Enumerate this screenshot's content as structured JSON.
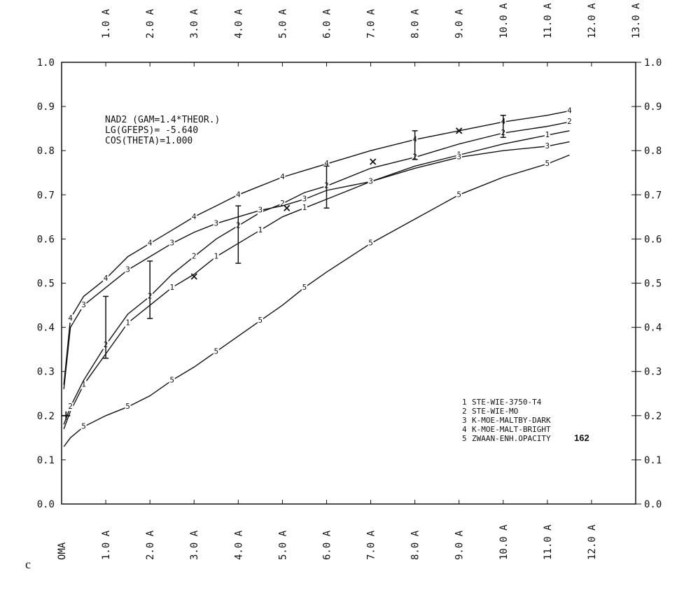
{
  "chart_data": {
    "type": "line",
    "annotations": [
      "NAD2 (GAM=1.4*THEOR.)",
      "LG(GFEPS)= -5.640",
      "COS(THETA)=1.000"
    ],
    "page_label": "c",
    "figure_number": "162",
    "xlim": [
      0,
      13
    ],
    "ylim": [
      0,
      1
    ],
    "xticks": [
      {
        "value": 0,
        "label": "OMA"
      },
      {
        "value": 1,
        "label": "1.0 A"
      },
      {
        "value": 2,
        "label": "2.0 A"
      },
      {
        "value": 3,
        "label": "3.0 A"
      },
      {
        "value": 4,
        "label": "4.0 A"
      },
      {
        "value": 5,
        "label": "5.0 A"
      },
      {
        "value": 6,
        "label": "6.0 A"
      },
      {
        "value": 7,
        "label": "7.0 A"
      },
      {
        "value": 8,
        "label": "8.0 A"
      },
      {
        "value": 9,
        "label": "9.0 A"
      },
      {
        "value": 10,
        "label": "10.0 A"
      },
      {
        "value": 11,
        "label": "11.0 A"
      },
      {
        "value": 12,
        "label": "12.0 A"
      }
    ],
    "x2ticks": [
      {
        "value": 1,
        "label": "1.0 A"
      },
      {
        "value": 2,
        "label": "2.0 A"
      },
      {
        "value": 3,
        "label": "3.0 A"
      },
      {
        "value": 4,
        "label": "4.0 A"
      },
      {
        "value": 5,
        "label": "5.0 A"
      },
      {
        "value": 6,
        "label": "6.0 A"
      },
      {
        "value": 7,
        "label": "7.0 A"
      },
      {
        "value": 8,
        "label": "8.0 A"
      },
      {
        "value": 9,
        "label": "9.0 A"
      },
      {
        "value": 10,
        "label": "10.0 A"
      },
      {
        "value": 11,
        "label": "11.0 A"
      },
      {
        "value": 12,
        "label": "12.0 A"
      },
      {
        "value": 13,
        "label": "13.0 A"
      }
    ],
    "yticks": [
      {
        "value": 0,
        "label": "0.0"
      },
      0.1,
      0.2,
      0.3,
      0.4,
      0.5,
      0.6,
      0.7,
      0.8,
      0.9,
      {
        "value": 1,
        "label": "1.0"
      }
    ],
    "color": "#111111",
    "x": [
      0.05,
      0.2,
      0.5,
      1,
      1.5,
      2,
      2.5,
      3,
      3.5,
      4,
      4.5,
      5,
      5.5,
      6,
      7,
      8,
      9,
      10,
      11,
      11.5
    ],
    "series": [
      {
        "id": "1",
        "name": "STE-WIE-3750-T4",
        "values": [
          0.17,
          0.21,
          0.27,
          0.34,
          0.41,
          0.45,
          0.49,
          0.52,
          0.56,
          0.59,
          0.62,
          0.65,
          0.67,
          0.69,
          0.73,
          0.765,
          0.79,
          0.815,
          0.835,
          0.845
        ]
      },
      {
        "id": "2",
        "name": "STE-WIE-MO",
        "values": [
          0.18,
          0.22,
          0.28,
          0.36,
          0.43,
          0.47,
          0.52,
          0.56,
          0.6,
          0.63,
          0.66,
          0.68,
          0.705,
          0.72,
          0.76,
          0.785,
          0.815,
          0.84,
          0.855,
          0.865
        ]
      },
      {
        "id": "3",
        "name": "K-MOE-MALTBY-DARK",
        "values": [
          0.26,
          0.4,
          0.45,
          0.49,
          0.53,
          0.56,
          0.59,
          0.615,
          0.635,
          0.65,
          0.665,
          0.675,
          0.69,
          0.71,
          0.73,
          0.76,
          0.785,
          0.8,
          0.81,
          0.82
        ]
      },
      {
        "id": "4",
        "name": "K-MOE-MALT-BRIGHT",
        "values": [
          0.27,
          0.42,
          0.47,
          0.51,
          0.56,
          0.59,
          0.62,
          0.65,
          0.675,
          0.7,
          0.72,
          0.74,
          0.755,
          0.77,
          0.8,
          0.825,
          0.845,
          0.865,
          0.88,
          0.89
        ]
      },
      {
        "id": "5",
        "name": "ZWAAN-ENH.OPACITY",
        "values": [
          0.13,
          0.15,
          0.175,
          0.2,
          0.22,
          0.245,
          0.28,
          0.31,
          0.345,
          0.38,
          0.415,
          0.45,
          0.49,
          0.525,
          0.59,
          0.645,
          0.7,
          0.74,
          0.77,
          0.79
        ]
      }
    ],
    "error_bars": {
      "x": [
        1,
        2,
        4,
        6,
        8,
        10
      ],
      "low": [
        0.33,
        0.42,
        0.545,
        0.67,
        0.78,
        0.83
      ],
      "high": [
        0.47,
        0.55,
        0.675,
        0.765,
        0.845,
        0.88
      ]
    },
    "cross_marks": {
      "x": [
        3,
        5.1,
        7.05,
        9
      ],
      "y": [
        0.515,
        0.67,
        0.775,
        0.845
      ]
    },
    "plus_marks": {
      "x": [
        0.1
      ],
      "y": [
        0.2
      ]
    }
  }
}
